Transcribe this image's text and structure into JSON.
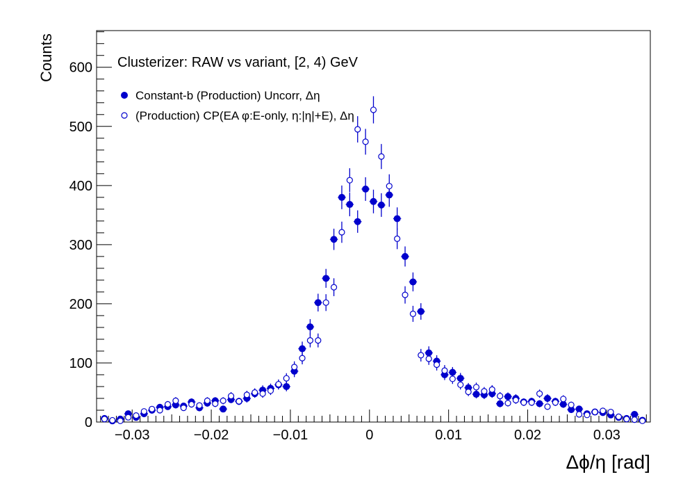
{
  "chart_data": {
    "type": "scatter",
    "title": "Clusterizer: RAW vs variant, [2, 4) GeV",
    "xlabel": "Δϕ/η  [rad]",
    "ylabel": "Counts",
    "xlim": [
      -0.0345,
      0.0355
    ],
    "ylim": [
      0,
      662
    ],
    "x_ticks": [
      -0.03,
      -0.02,
      -0.01,
      0,
      0.01,
      0.02,
      0.03
    ],
    "x_tick_labels": [
      "−0.03",
      "−0.02",
      "−0.01",
      "0",
      "0.01",
      "0.02",
      "0.03"
    ],
    "y_ticks": [
      0,
      100,
      200,
      300,
      400,
      500,
      600
    ],
    "y_tick_labels": [
      "0",
      "100",
      "200",
      "300",
      "400",
      "500",
      "600"
    ],
    "grid": false,
    "legend_position": "top-left",
    "colors": {
      "series": "#0000cc"
    },
    "x": [
      -0.0335,
      -0.0325,
      -0.0315,
      -0.0305,
      -0.0295,
      -0.0285,
      -0.0275,
      -0.0265,
      -0.0255,
      -0.0245,
      -0.0235,
      -0.0225,
      -0.0215,
      -0.0205,
      -0.0195,
      -0.0185,
      -0.0175,
      -0.0165,
      -0.0155,
      -0.0145,
      -0.0135,
      -0.0125,
      -0.0115,
      -0.0105,
      -0.0095,
      -0.0085,
      -0.0075,
      -0.0065,
      -0.0055,
      -0.0045,
      -0.0035,
      -0.0025,
      -0.0015,
      -0.0005,
      0.0005,
      0.0015,
      0.0025,
      0.0035,
      0.0045,
      0.0055,
      0.0065,
      0.0075,
      0.0085,
      0.0095,
      0.0105,
      0.0115,
      0.0125,
      0.0135,
      0.0145,
      0.0155,
      0.0165,
      0.0175,
      0.0185,
      0.0195,
      0.0205,
      0.0215,
      0.0225,
      0.0235,
      0.0245,
      0.0255,
      0.0265,
      0.0275,
      0.0285,
      0.0295,
      0.0305,
      0.0315,
      0.0325,
      0.0335,
      0.0345
    ],
    "series": [
      {
        "name": "Constant-b (Production) Uncorr, Δη",
        "marker": "filled",
        "values": [
          6,
          2,
          5,
          14,
          8,
          14,
          20,
          25,
          26,
          29,
          27,
          34,
          24,
          32,
          36,
          22,
          38,
          35,
          40,
          48,
          54,
          57,
          63,
          60,
          86,
          124,
          161,
          202,
          243,
          309,
          380,
          368,
          339,
          394,
          373,
          367,
          384,
          344,
          280,
          237,
          187,
          117,
          103,
          80,
          84,
          74,
          58,
          47,
          46,
          48,
          31,
          43,
          40,
          34,
          35,
          31,
          40,
          35,
          30,
          21,
          22,
          14,
          17,
          16,
          12,
          8,
          6,
          13,
          3
        ],
        "errors": [
          3,
          2,
          2,
          4,
          3,
          4,
          5,
          5,
          5,
          6,
          5,
          6,
          5,
          6,
          6,
          5,
          6,
          6,
          7,
          7,
          8,
          8,
          8,
          8,
          10,
          12,
          13,
          15,
          16,
          18,
          20,
          20,
          19,
          20,
          20,
          20,
          20,
          19,
          17,
          16,
          14,
          11,
          10,
          9,
          9,
          9,
          8,
          7,
          7,
          7,
          6,
          7,
          7,
          6,
          6,
          6,
          7,
          6,
          6,
          5,
          5,
          4,
          4,
          4,
          4,
          3,
          3,
          4,
          2
        ]
      },
      {
        "name": "(Production) CP(EA φ:E-only, η:|η|+E), Δη",
        "marker": "open",
        "values": [
          5,
          3,
          2,
          8,
          11,
          18,
          22,
          20,
          30,
          36,
          24,
          30,
          28,
          36,
          31,
          36,
          44,
          35,
          46,
          50,
          48,
          53,
          64,
          74,
          93,
          108,
          138,
          138,
          202,
          228,
          321,
          409,
          495,
          474,
          528,
          449,
          399,
          310,
          215,
          183,
          113,
          107,
          97,
          87,
          73,
          63,
          51,
          59,
          52,
          55,
          44,
          32,
          37,
          33,
          33,
          48,
          26,
          33,
          39,
          29,
          13,
          12,
          17,
          19,
          17,
          9,
          5,
          4,
          2
        ]
      }
    ]
  }
}
